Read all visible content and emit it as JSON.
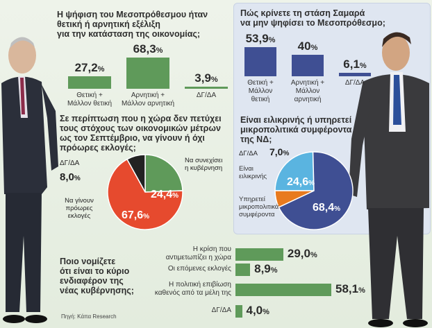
{
  "colors": {
    "green": "#5f9a5a",
    "blue": "#3f4f93",
    "orange": "#e87a1e",
    "red": "#e64a2e",
    "lightblue": "#5ab4e0",
    "dark": "#222222"
  },
  "q1": {
    "title": "Η ψήφιση του Μεσοπρόθεσμου ήταν θετική ή αρνητική εξέλιξη για την κατάσταση της οικονομίας;",
    "title_lines": [
      "Η ψήφιση του Μεσοπρόθεσμου ήταν",
      "θετική ή αρνητική εξέλιξη",
      "για την κατάσταση της οικονομίας;"
    ]
  },
  "q2": {
    "title_lines": [
      "Πώς κρίνετε τη στάση Σαμαρά",
      "να μην ψηφίσει το Μεσοπρόθεσμο;"
    ]
  },
  "q3": {
    "title_lines": [
      "Σε περίπτωση που η χώρα δεν πετύχει",
      "τους στόχους των οικονομικών μέτρων",
      "ως τον Σεπτέμβριο, να γίνουν ή όχι",
      "πρόωρες εκλογές;"
    ]
  },
  "q4": {
    "title_lines": [
      "Είναι ειλικρινής ή υπηρετεί",
      "μικροπολιτικά συμφέροντα",
      "της ΝΔ;"
    ]
  },
  "q5": {
    "title_lines": [
      "Ποιο νομίζετε",
      "ότι είναι το κύριο",
      "ενδιαφέρον της",
      "νέας κυβέρνησης;"
    ]
  },
  "source": "Πηγή: Kάπα Research",
  "chart_data": [
    {
      "type": "bar",
      "title": "Η ψήφιση του Μεσοπρόθεσμου ήταν θετική ή αρνητική εξέλιξη για την κατάσταση της οικονομίας;",
      "categories": [
        "Θετική + Μάλλον θετική",
        "Αρνητική + Μάλλον αρνητική",
        "ΔΓ/ΔΑ"
      ],
      "category_lines": [
        [
          "Θετική +",
          "Μάλλον θετική"
        ],
        [
          "Αρνητική +",
          "Μάλλον αρνητική"
        ],
        [
          "ΔΓ/ΔΑ"
        ]
      ],
      "values": [
        27.2,
        68.3,
        3.9
      ],
      "labels": [
        "27,2",
        "68,3",
        "3,9"
      ],
      "color": "#5f9a5a"
    },
    {
      "type": "bar",
      "title": "Πώς κρίνετε τη στάση Σαμαρά να μην ψηφίσει το Μεσοπρόθεσμο;",
      "categories": [
        "Θετική + Μάλλον θετική",
        "Αρνητική + Μάλλον αρνητική",
        "ΔΓ/ΔΑ"
      ],
      "category_lines": [
        [
          "Θετική +",
          "Μάλλον",
          "θετική"
        ],
        [
          "Αρνητική +",
          "Μάλλον",
          "αρνητική"
        ],
        [
          "ΔΓ/ΔΑ"
        ]
      ],
      "values": [
        53.9,
        40,
        6.1
      ],
      "labels": [
        "53,9",
        "40",
        "6,1"
      ],
      "color": "#3f4f93"
    },
    {
      "type": "pie",
      "title": "Σε περίπτωση που η χώρα δεν πετύχει τους στόχους των οικονομικών μέτρων ως τον Σεπτέμβριο, να γίνουν ή όχι πρόωρες εκλογές;",
      "categories": [
        "Να συνεχίσει η κυβέρνηση",
        "Να γίνουν πρόωρες εκλογές",
        "ΔΓ/ΔΑ"
      ],
      "values": [
        24.4,
        67.6,
        8.0
      ],
      "labels": [
        "24,4",
        "67,6",
        "8,0"
      ],
      "colors": [
        "#5f9a5a",
        "#e64a2e",
        "#222222"
      ]
    },
    {
      "type": "pie",
      "title": "Είναι ειλικρινής ή υπηρετεί μικροπολιτικά συμφέροντα της ΝΔ;",
      "categories": [
        "Είναι ειλικρινής",
        "Υπηρετεί μικροπολιτικά συμφέροντα",
        "ΔΓ/ΔΑ"
      ],
      "values": [
        24.6,
        68.4,
        7.0
      ],
      "labels": [
        "24,6",
        "68,4",
        "7,0"
      ],
      "colors": [
        "#5ab4e0",
        "#3f4f93",
        "#e87a1e"
      ]
    },
    {
      "type": "bar",
      "orientation": "horizontal",
      "title": "Ποιο νομίζετε ότι είναι το κύριο ενδιαφέρον της νέας κυβέρνησης;",
      "categories": [
        "Η κρίση που αντιμετωπίζει η χώρα",
        "Οι επόμενες εκλογές",
        "Η πολιτική επιβίωση καθενός από τα μέλη της",
        "ΔΓ/ΔΑ"
      ],
      "category_lines": [
        [
          "Η κρίση που",
          "αντιμετωπίζει η χώρα"
        ],
        [
          "Οι επόμενες εκλογές"
        ],
        [
          "Η πολιτική επιβίωση",
          "καθενός από τα μέλη της"
        ],
        [
          "ΔΓ/ΔΑ"
        ]
      ],
      "values": [
        29.0,
        8.9,
        58.1,
        4.0
      ],
      "labels": [
        "29,0",
        "8,9",
        "58,1",
        "4,0"
      ],
      "color": "#5f9a5a"
    }
  ],
  "pie1_labels": {
    "a": [
      "Να συνεχίσει",
      "η κυβέρνηση"
    ],
    "b": [
      "Να γίνουν",
      "πρόωρες",
      "εκλογές"
    ],
    "c": "ΔΓ/ΔΑ"
  },
  "pie2_labels": {
    "a": [
      "Είναι",
      "ειλικρινής"
    ],
    "b": [
      "Υπηρετεί",
      "μικροπολιτικά",
      "συμφέροντα"
    ],
    "c": "ΔΓ/ΔΑ"
  },
  "pct_sign": "%"
}
